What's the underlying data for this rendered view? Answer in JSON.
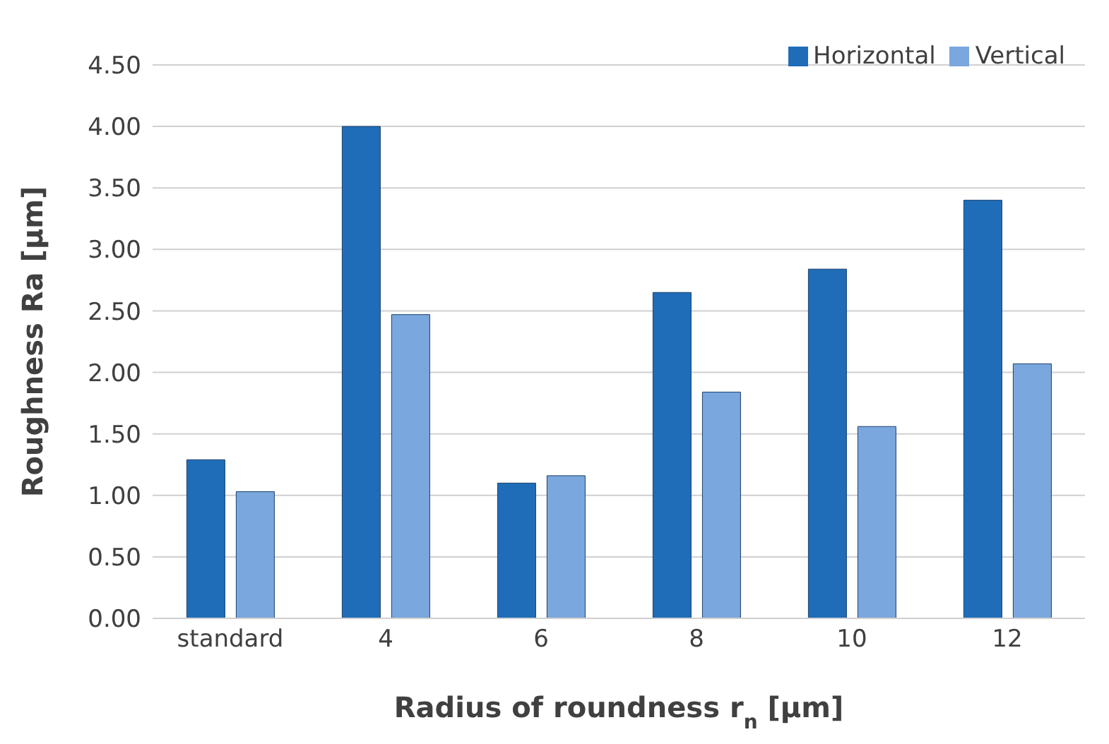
{
  "chart_data": {
    "type": "bar",
    "xlabel": "Radius of roundness r$_{n}$ [μm]",
    "ylabel": "Roughness Ra [μm]",
    "categories": [
      "standard",
      "4",
      "6",
      "8",
      "10",
      "12"
    ],
    "series": [
      {
        "name": "Horizontal",
        "color": "#1f6db8",
        "values": [
          1.29,
          4.0,
          1.1,
          2.65,
          2.84,
          3.4
        ]
      },
      {
        "name": "Vertical",
        "color": "#7aa7dd",
        "values": [
          1.03,
          2.47,
          1.16,
          1.84,
          1.56,
          2.07
        ]
      }
    ],
    "ylim": [
      0,
      4.5
    ],
    "yticks": [
      {
        "value": 0,
        "label": "0.00"
      },
      {
        "value": 0.5,
        "label": "0.50"
      },
      {
        "value": 1,
        "label": "1.00"
      },
      {
        "value": 1.5,
        "label": "1.50"
      },
      {
        "value": 2,
        "label": "2.00"
      },
      {
        "value": 2.5,
        "label": "2.50"
      },
      {
        "value": 3,
        "label": "3.00"
      },
      {
        "value": 3.5,
        "label": "3.50"
      },
      {
        "value": 4,
        "label": "4.00"
      },
      {
        "value": 4.5,
        "label": "4.50"
      }
    ],
    "grid": "y",
    "legend": "top right"
  }
}
